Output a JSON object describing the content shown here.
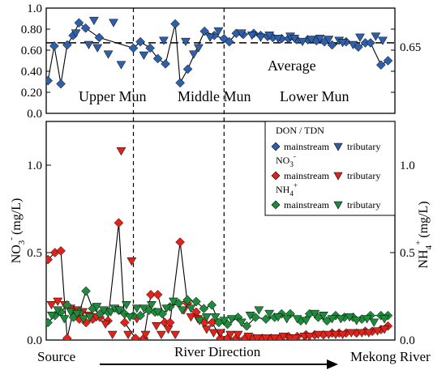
{
  "chart_data": [
    {
      "type": "line",
      "panel": "top",
      "y_axis": {
        "ylim": [
          0,
          1.0
        ],
        "ticks": [
          "0.0",
          "0.20",
          "0.40",
          "0.60",
          "0.80",
          "1.0"
        ]
      },
      "right_label": "0.65",
      "reference_line": {
        "value": 0.67,
        "label": "Average"
      },
      "regions": [
        "Upper Mun",
        "Middle Mun",
        "Lower Mun"
      ],
      "region_bounds": [
        25,
        51
      ],
      "xlim": [
        0,
        100
      ],
      "series": [
        {
          "legend": "DON/TDN mainstream",
          "marker": "diamond",
          "color": "#2E5FA8",
          "x": [
            0.5,
            2.3,
            4.2,
            6,
            7.7,
            9.4,
            11.3,
            15.2,
            25,
            27,
            29.8,
            32,
            34.2,
            37,
            38.4,
            40.6,
            45.4,
            48.2,
            51,
            52.5,
            54.5,
            56.5,
            59.5,
            61.5,
            63.5,
            65,
            67.5,
            69.5,
            71.8,
            75,
            77.5,
            79.8,
            82,
            86,
            89.5,
            91.5,
            93,
            96,
            98
          ],
          "y": [
            0.31,
            0.64,
            0.28,
            0.65,
            0.74,
            0.86,
            0.81,
            0.72,
            0.62,
            0.68,
            0.62,
            0.52,
            0.47,
            0.85,
            0.29,
            0.42,
            0.78,
            0.74,
            0.71,
            0.68,
            0.76,
            0.75,
            0.76,
            0.74,
            0.73,
            0.72,
            0.71,
            0.71,
            0.7,
            0.7,
            0.69,
            0.68,
            0.65,
            0.68,
            0.63,
            0.67,
            0.67,
            0.46,
            0.5
          ]
        },
        {
          "legend": "DON/TDN tributary",
          "marker": "triangle-down",
          "color": "#2E5FA8",
          "x": [
            8.5,
            12.2,
            13.7,
            14.7,
            17.8,
            19.3,
            21.5,
            28,
            33.7,
            40,
            42.3,
            43.7,
            47,
            49.4,
            56,
            59,
            61.5,
            64,
            66.5,
            70,
            71.2,
            73.5,
            76,
            78.5,
            81,
            84,
            85,
            88,
            90,
            94.5,
            96.5
          ],
          "y": [
            0.76,
            0.65,
            0.88,
            0.62,
            0.56,
            0.86,
            0.46,
            0.55,
            0.69,
            0.68,
            0.56,
            0.62,
            0.72,
            0.78,
            0.76,
            0.74,
            0.72,
            0.74,
            0.71,
            0.73,
            0.71,
            0.68,
            0.7,
            0.71,
            0.7,
            0.69,
            0.67,
            0.65,
            0.72,
            0.73,
            0.69
          ]
        }
      ]
    },
    {
      "type": "line",
      "panel": "bottom",
      "y_axis": {
        "ylim": [
          0,
          1.25
        ],
        "ticks": [
          "0.0",
          "0.5",
          "1.0"
        ]
      },
      "ylabel_left": "NO3- (mg/L)",
      "ylabel_right": "NH4+ (mg/L)",
      "y_axis_right": {
        "ticks": [
          "0.0",
          "0.5",
          "1.0"
        ]
      },
      "ylabel_left_parts": {
        "base": "NO",
        "sub": "3",
        "sup": "-",
        "unit": "(mg/L)"
      },
      "ylabel_right_parts": {
        "base": "NH",
        "sub": "4",
        "sup": "+",
        "unit": "(mg/L)"
      },
      "xlim": [
        0,
        100
      ],
      "x_start_label": "Source",
      "x_end_label": "Mekong River",
      "x_axis_label": "River Direction",
      "legend": {
        "title": "DON / TDN",
        "groups": [
          {
            "title_base": "NO",
            "title_sub": "3",
            "title_sup": "-"
          },
          {
            "title_base": "NH",
            "title_sub": "4",
            "title_sup": "+"
          }
        ],
        "mainstream_label": "mainstream",
        "tributary_label": "tributary"
      },
      "series": [
        {
          "legend": "NO3- mainstream",
          "marker": "diamond",
          "color": "#E2231A",
          "x": [
            0.5,
            2.5,
            4.2,
            6,
            7.8,
            9.5,
            11.4,
            13.3,
            15.4,
            17.7,
            20.8,
            22.5,
            25.6,
            28,
            30,
            32,
            34,
            35.5,
            38.4,
            40.5,
            43,
            45.4,
            47.6,
            50,
            52,
            54.5,
            57,
            59.5,
            62,
            64.5,
            67,
            69.5,
            72,
            74.5,
            77,
            79.5,
            82,
            84,
            86,
            89,
            91.5,
            93.5,
            96,
            98
          ],
          "y": [
            0.46,
            0.5,
            0.51,
            0.01,
            0.17,
            0.12,
            0.1,
            0.12,
            0.13,
            0.11,
            0.67,
            0.1,
            0.01,
            0.01,
            0.26,
            0.26,
            0.1,
            0.1,
            0.56,
            0.21,
            0.16,
            0.1,
            0.1,
            0.01,
            0.01,
            0.01,
            0.01,
            0.01,
            0.01,
            0.01,
            0.01,
            0.02,
            0.02,
            0.03,
            0.03,
            0.03,
            0.04,
            0.04,
            0.04,
            0.04,
            0.05,
            0.05,
            0.06,
            0.08
          ]
        },
        {
          "legend": "NO3- tributary",
          "marker": "triangle-down",
          "color": "#E2231A",
          "x": [
            1.5,
            3.3,
            5.3,
            7,
            9,
            10.5,
            12.3,
            14.4,
            17,
            19,
            21.5,
            23.5,
            24.5,
            26,
            28.5,
            31.6,
            33,
            35,
            37,
            39.5,
            41.5,
            43.5,
            46,
            48,
            50,
            52.8,
            55,
            58,
            60.5,
            63,
            65.5,
            68,
            70,
            71.5,
            74,
            75.5,
            78,
            81,
            83,
            85,
            87.5,
            90.5,
            92.5,
            95,
            97
          ],
          "y": [
            0.2,
            0.22,
            0.2,
            0.18,
            0.17,
            0.16,
            0.14,
            0.13,
            0.09,
            0.03,
            1.08,
            0.03,
            0.45,
            0.12,
            0.03,
            0.08,
            0.03,
            0.06,
            0.03,
            0.17,
            0.13,
            0.12,
            0.06,
            0.04,
            0.04,
            0.03,
            0.03,
            0.02,
            0.01,
            0.01,
            0.01,
            0.02,
            0.01,
            0.01,
            0.02,
            0.02,
            0.03,
            0.03,
            0.03,
            0.03,
            0.04,
            0.04,
            0.04,
            0.05,
            0.06
          ]
        },
        {
          "legend": "NH4+ mainstream",
          "marker": "diamond",
          "color": "#1E8A3C",
          "x": [
            0.5,
            2.5,
            4.2,
            6,
            7.8,
            9.5,
            11.4,
            13.3,
            15.4,
            17.7,
            20.8,
            22.5,
            25,
            27,
            29.5,
            31.2,
            33.3,
            35.5,
            38,
            40.5,
            43,
            45.2,
            47.5,
            49.5,
            52,
            55,
            57.5,
            60,
            63,
            65.5,
            67.5,
            70,
            73,
            75.5,
            78,
            80.5,
            83,
            85.5,
            88,
            90.5,
            93,
            96,
            98
          ],
          "y": [
            0.1,
            0.14,
            0.16,
            0.2,
            0.13,
            0.16,
            0.28,
            0.18,
            0.15,
            0.16,
            0.17,
            0.15,
            0.14,
            0.14,
            0.17,
            0.16,
            0.15,
            0.19,
            0.21,
            0.23,
            0.22,
            0.18,
            0.2,
            0.1,
            0.09,
            0.13,
            0.08,
            0.13,
            0.12,
            0.13,
            0.15,
            0.15,
            0.11,
            0.15,
            0.13,
            0.11,
            0.14,
            0.13,
            0.13,
            0.12,
            0.14,
            0.14,
            0.14
          ]
        },
        {
          "legend": "NH4+ tributary",
          "marker": "triangle-down",
          "color": "#1E8A3C",
          "x": [
            1.6,
            3.3,
            5.2,
            7,
            8.8,
            10.7,
            12.5,
            14.5,
            16.5,
            18.5,
            19.6,
            21,
            23,
            24,
            26,
            28,
            30.2,
            32,
            34.5,
            36.5,
            39,
            41.5,
            44,
            46,
            48.5,
            51,
            53.2,
            56,
            58.5,
            61,
            64,
            66.5,
            69,
            72,
            74.5,
            77,
            79.5,
            82,
            84.5,
            87,
            89,
            92,
            94,
            97
          ],
          "y": [
            0.14,
            0.17,
            0.12,
            0.16,
            0.15,
            0.12,
            0.13,
            0.19,
            0.17,
            0.16,
            0.18,
            0.17,
            0.2,
            0.13,
            0.18,
            0.18,
            0.2,
            0.16,
            0.18,
            0.22,
            0.17,
            0.18,
            0.11,
            0.13,
            0.13,
            0.11,
            0.12,
            0.1,
            0.14,
            0.17,
            0.15,
            0.13,
            0.12,
            0.12,
            0.11,
            0.15,
            0.14,
            0.12,
            0.12,
            0.13,
            0.11,
            0.12,
            0.1,
            0.12
          ]
        }
      ]
    }
  ]
}
